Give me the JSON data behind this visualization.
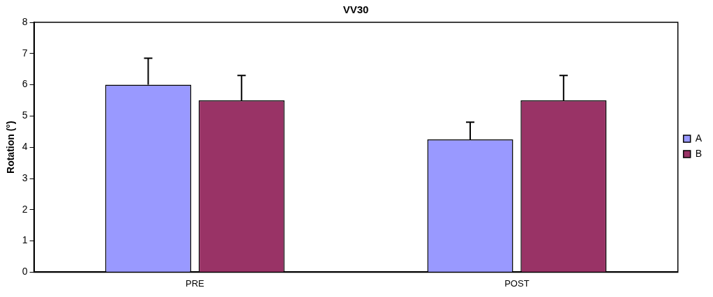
{
  "chart_data": {
    "type": "bar",
    "title": "VV30",
    "ylabel": "Rotation (°)",
    "categories": [
      "PRE",
      "POST"
    ],
    "series": [
      {
        "name": "A",
        "color": "#9999ff",
        "values": [
          6,
          4.25
        ],
        "errors": [
          [
            6,
            6.85
          ],
          [
            4.25,
            4.8
          ]
        ]
      },
      {
        "name": "B",
        "color": "#993366",
        "values": [
          5.5,
          5.5
        ],
        "errors": [
          [
            5.5,
            6.3
          ],
          [
            5.5,
            6.3
          ]
        ]
      }
    ],
    "ylim": [
      0,
      8
    ],
    "yticks": [
      0,
      1,
      2,
      3,
      4,
      5,
      6,
      7,
      8
    ],
    "grid": false,
    "legend": "right"
  }
}
